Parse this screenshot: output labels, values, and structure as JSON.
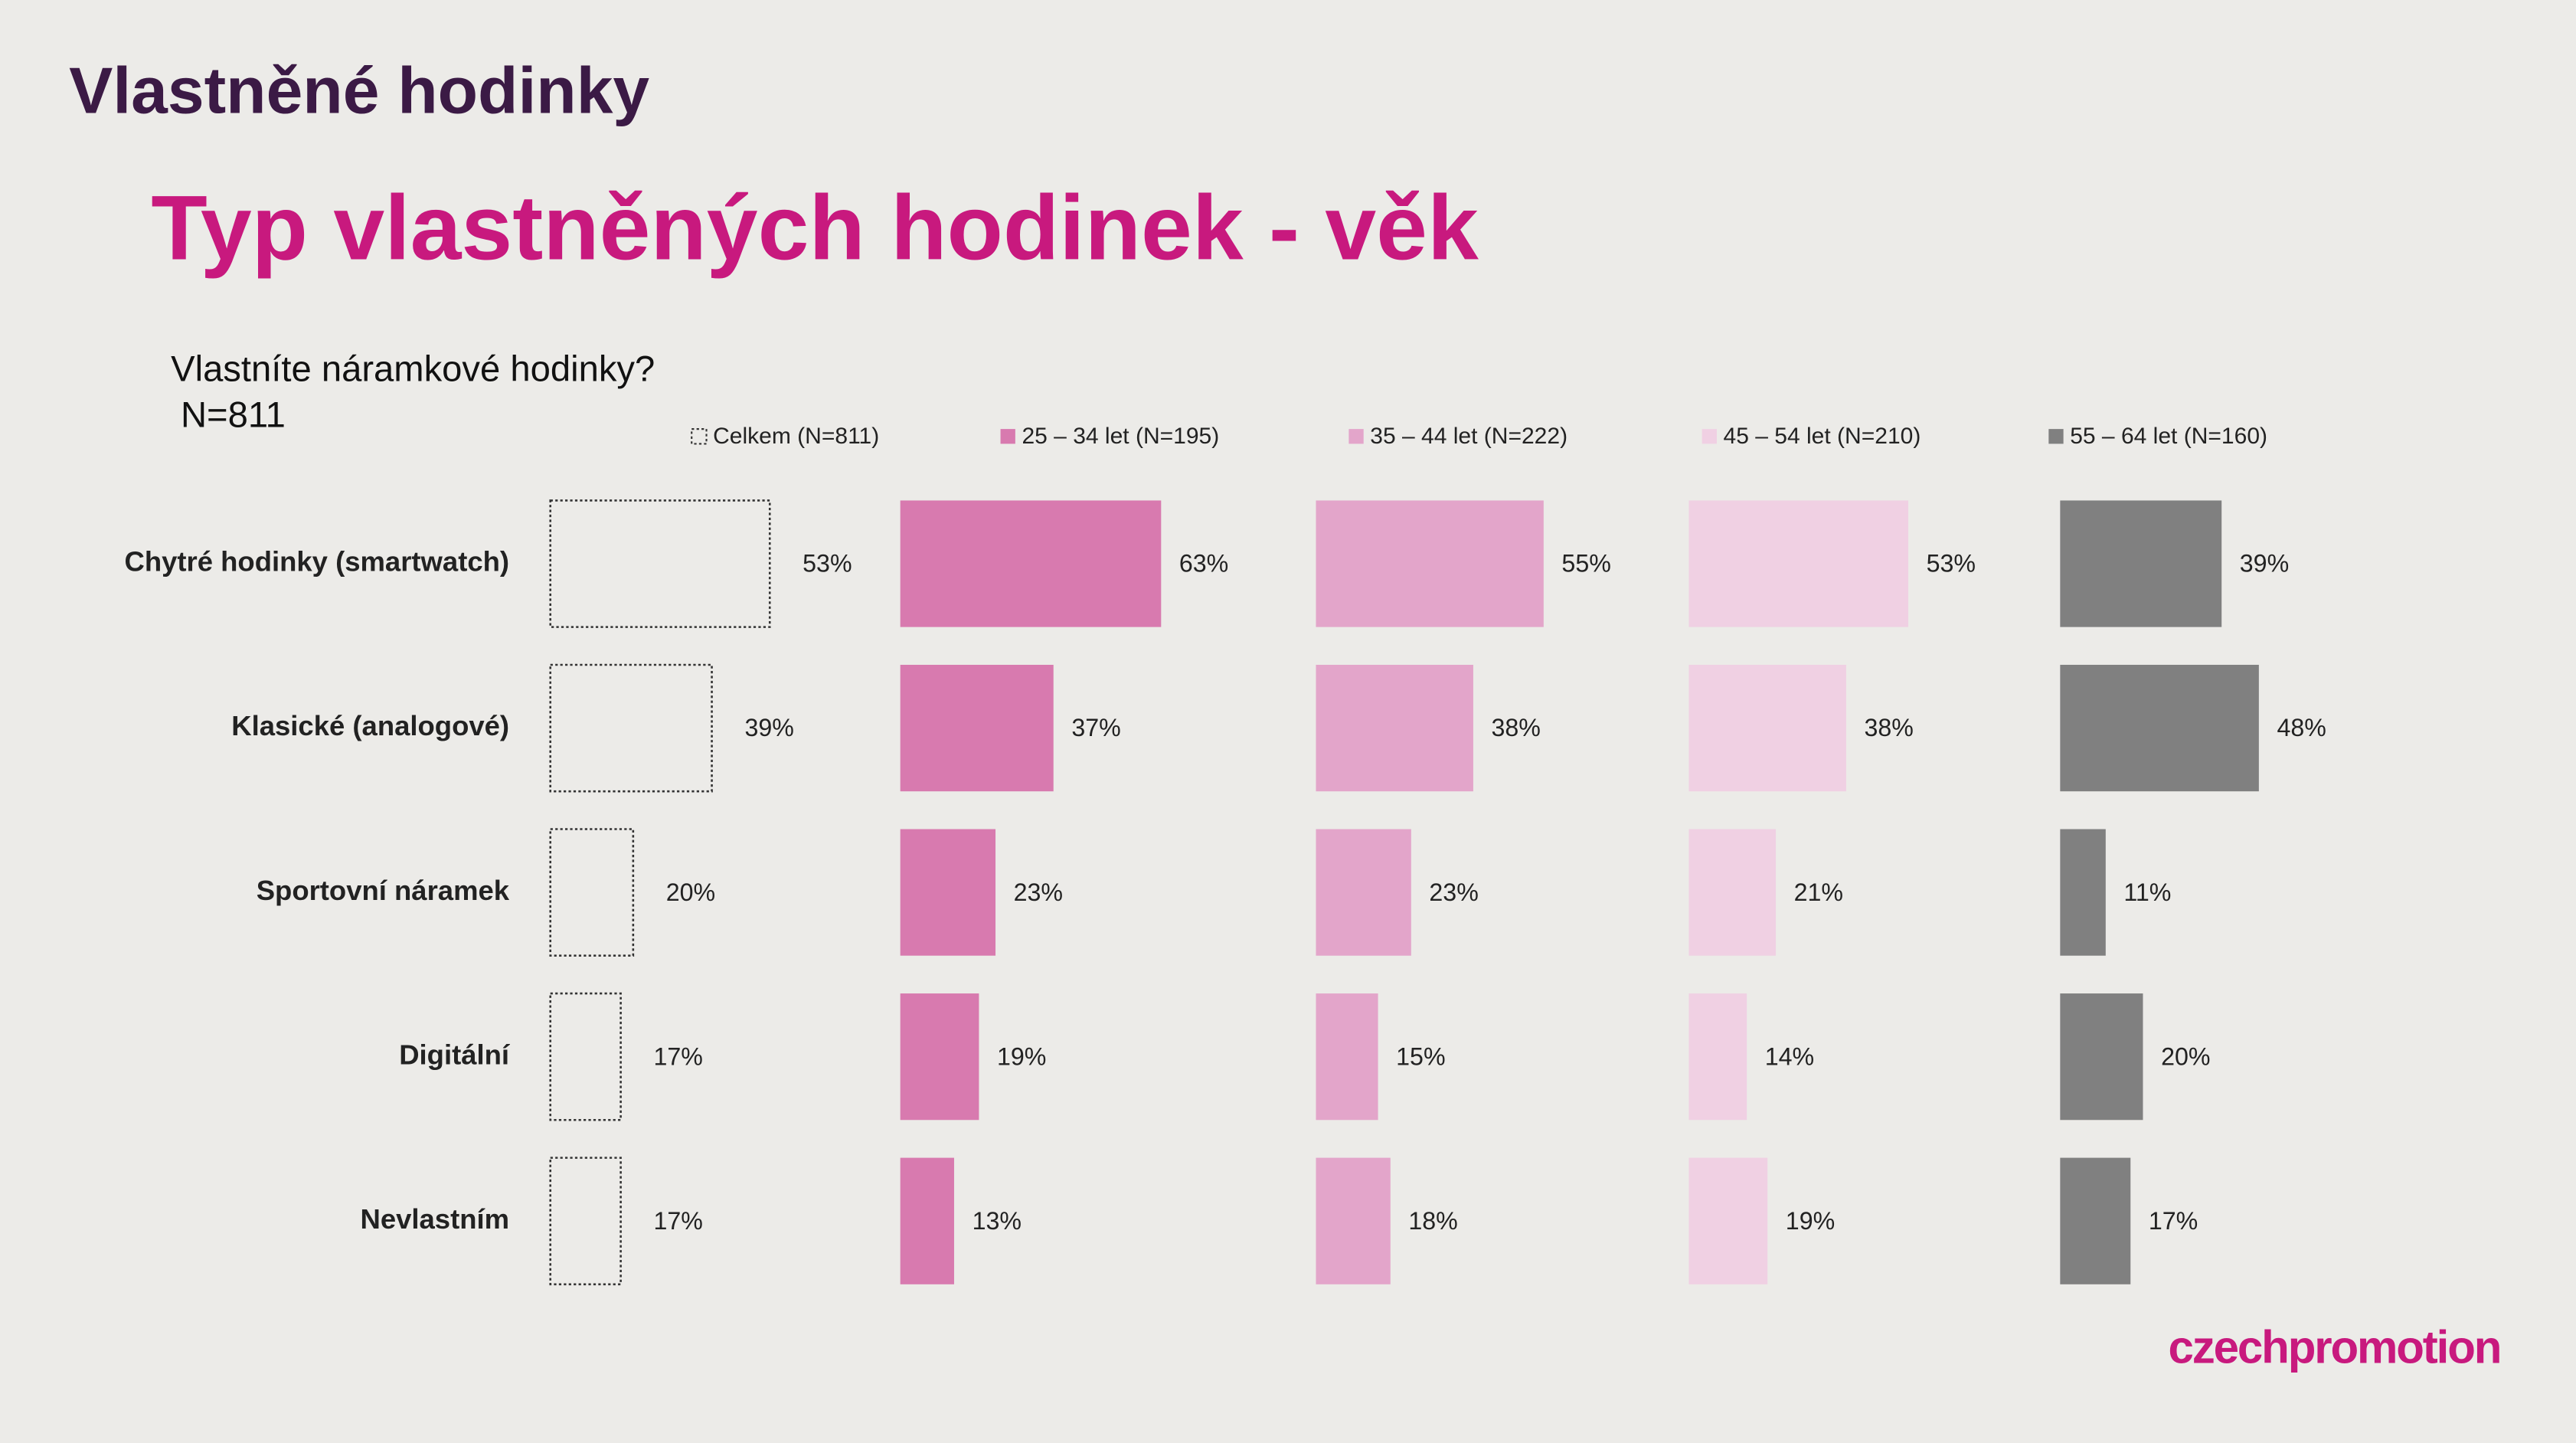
{
  "header": {
    "section": "Vlastněné hodinky",
    "title": "Typ vlastněných hodinek - věk",
    "question": "Vlastníte náramkové hodinky?",
    "sample": "N=811",
    "logo": "czechpromotion"
  },
  "chart_data": {
    "type": "bar",
    "orientation": "horizontal",
    "categories": [
      "Chytré hodinky (smartwatch)",
      "Klasické (analogové)",
      "Sportovní náramek",
      "Digitální",
      "Nevlastním"
    ],
    "series": [
      {
        "name": "Celkem (N=811)",
        "color": "none",
        "values": [
          53,
          39,
          20,
          17,
          17
        ],
        "value_labels": [
          "53%",
          "39%",
          "20%",
          "17%",
          "17%"
        ]
      },
      {
        "name": "25 – 34 let (N=195)",
        "color": "#d87aaf",
        "values": [
          63,
          37,
          23,
          19,
          13
        ],
        "value_labels": [
          "63%",
          "37%",
          "23%",
          "19%",
          "13%"
        ]
      },
      {
        "name": "35 – 44 let (N=222)",
        "color": "#e3a5ca",
        "values": [
          55,
          38,
          23,
          15,
          18
        ],
        "value_labels": [
          "55%",
          "38%",
          "23%",
          "15%",
          "18%"
        ]
      },
      {
        "name": "45 – 54 let (N=210)",
        "color": "#f0d0e3",
        "values": [
          53,
          38,
          21,
          14,
          19
        ],
        "value_labels": [
          "53%",
          "38%",
          "21%",
          "14%",
          "19%"
        ]
      },
      {
        "name": "55 – 64 let (N=160)",
        "color": "#808080",
        "values": [
          39,
          48,
          11,
          20,
          17
        ],
        "value_labels": [
          "39%",
          "48%",
          "11%",
          "20%",
          "17%"
        ]
      }
    ]
  }
}
